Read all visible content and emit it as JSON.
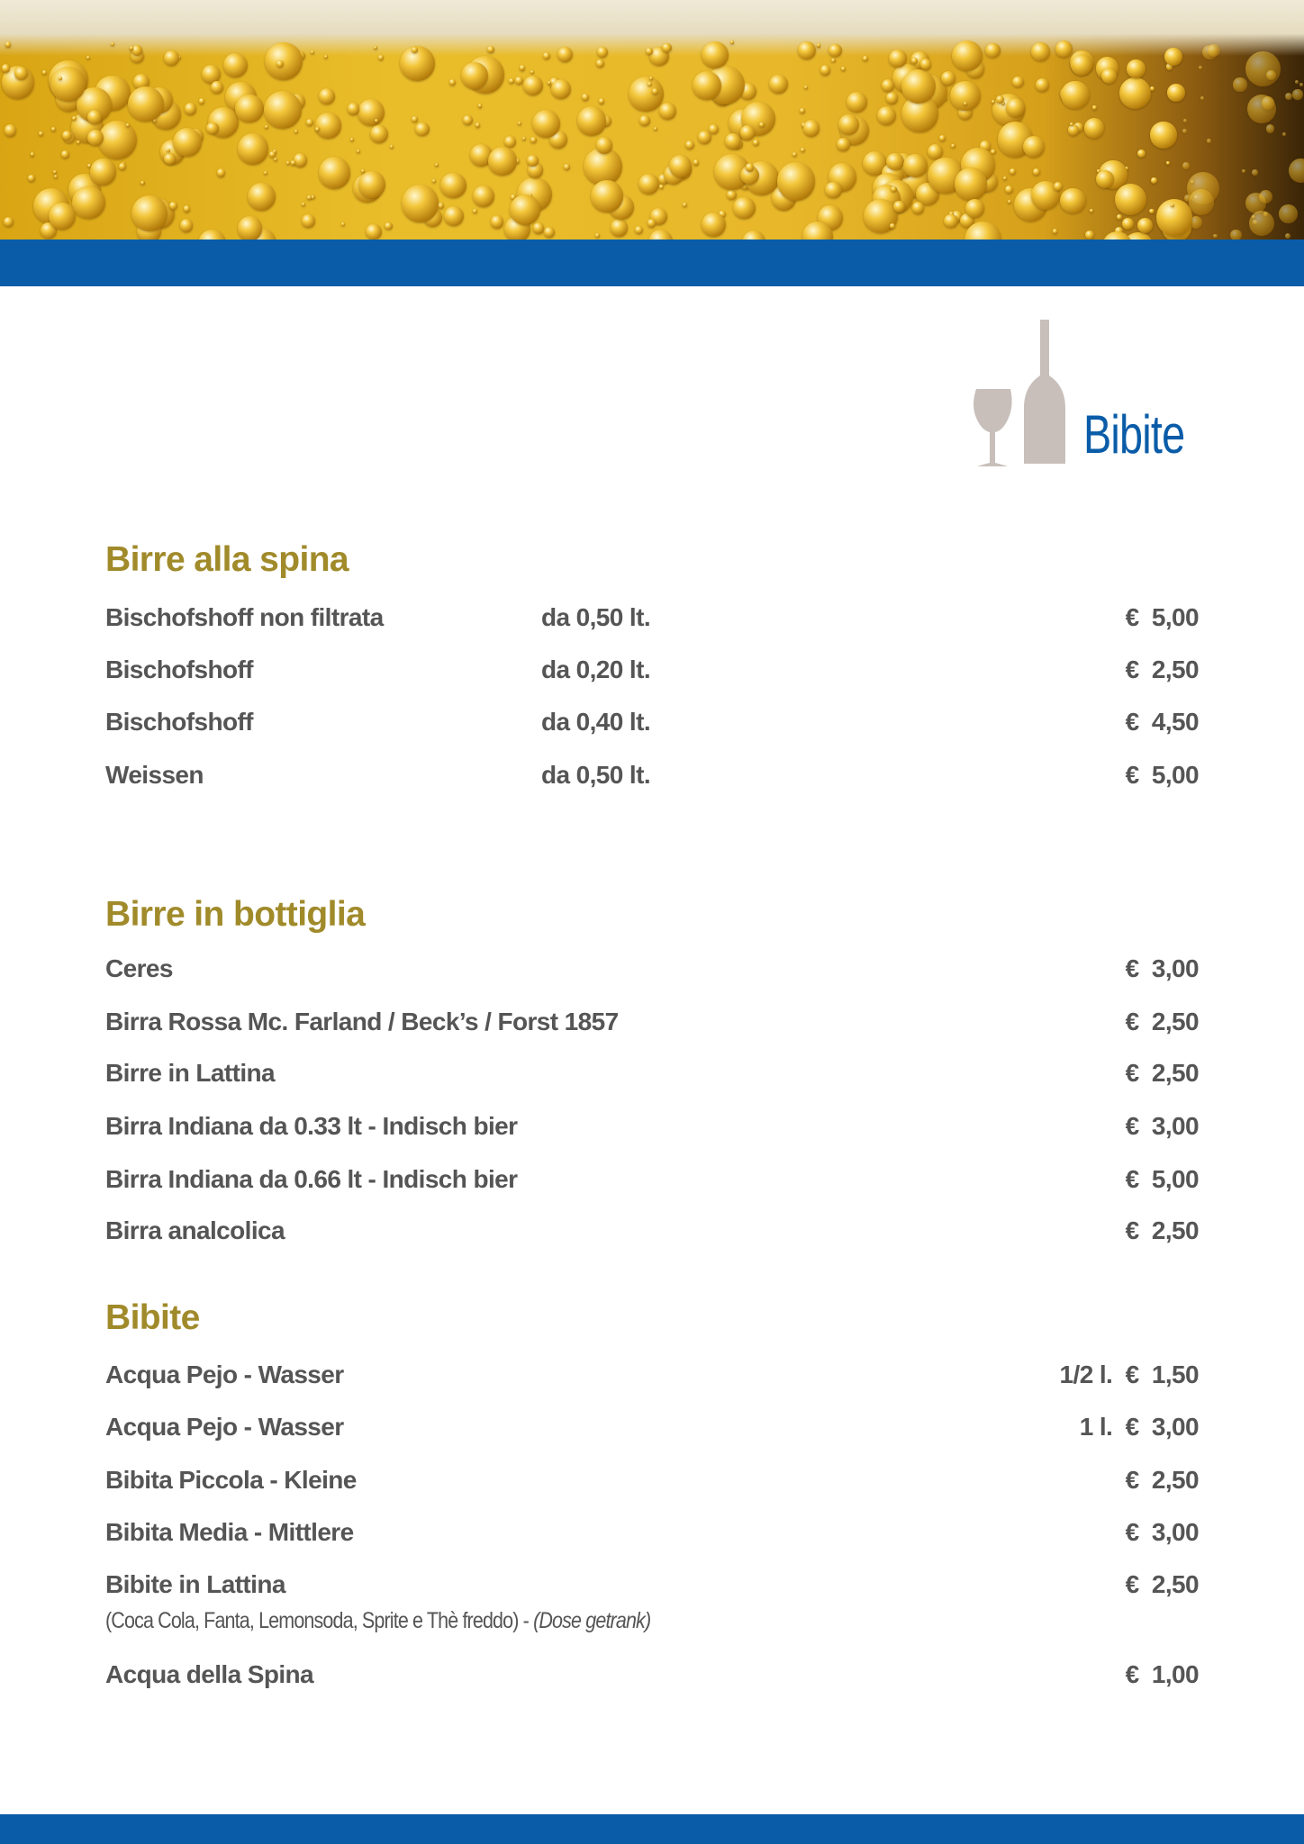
{
  "header": {
    "title": "Bibite",
    "icon": "wine-bottle-glass-icon",
    "colors": {
      "band": "#0a5ca8",
      "heading": "#a08a2a",
      "text": "#555555"
    }
  },
  "sections": [
    {
      "title": "Birre alla spina",
      "items": [
        {
          "name": "Bischofshoff non filtrata",
          "size": "da 0,50 lt.",
          "price": "€  5,00"
        },
        {
          "name": "Bischofshoff",
          "size": "da 0,20 lt.",
          "price": "€  2,50"
        },
        {
          "name": "Bischofshoff",
          "size": "da 0,40 lt.",
          "price": "€  4,50"
        },
        {
          "name": "Weissen",
          "size": "da 0,50 lt.",
          "price": "€  5,00"
        }
      ]
    },
    {
      "title": "Birre in bottiglia",
      "items": [
        {
          "name": "Ceres",
          "price": "€  3,00"
        },
        {
          "name": "Birra Rossa Mc. Farland / Beck’s / Forst 1857",
          "price": "€  2,50"
        },
        {
          "name": "Birre in Lattina",
          "price": "€  2,50"
        },
        {
          "name": "Birra Indiana da 0.33 lt - Indisch bier",
          "price": "€  3,00"
        },
        {
          "name": "Birra Indiana da 0.66 lt - Indisch bier",
          "price": "€  5,00"
        },
        {
          "name": "Birra analcolica",
          "price": "€  2,50"
        }
      ]
    },
    {
      "title": "Bibite",
      "items": [
        {
          "name": "Acqua Pejo - Wasser",
          "price": "1/2 l.  €  1,50"
        },
        {
          "name": "Acqua Pejo - Wasser",
          "price": "1 l.  €  3,00"
        },
        {
          "name": "Bibita Piccola - Kleine",
          "price": "€  2,50"
        },
        {
          "name": "Bibita Media - Mittlere",
          "price": "€  3,00"
        },
        {
          "name": "Bibite in Lattina",
          "price": "€  2,50",
          "note": "(Coca Cola, Fanta, Lemonsoda, Sprite e Thè freddo) - ",
          "note_italic": "(Dose getrank)"
        },
        {
          "name": "Acqua della Spina",
          "price": "€  1,00"
        }
      ]
    }
  ]
}
